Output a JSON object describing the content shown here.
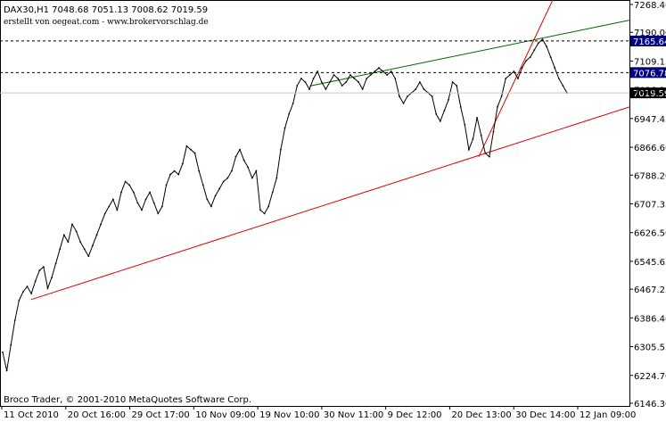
{
  "header": {
    "symbol_line": "DAX30,H1  7048.68 7051.13 7008.62 7019.59",
    "source_line": "erstellt von oegeat.com - www.brokervorschlag.de"
  },
  "footer": {
    "copyright": "Broco Trader, © 2001-2010 MetaQuotes Software Corp."
  },
  "colors": {
    "background": "#ffffff",
    "price_line": "#000000",
    "support_line": "#e00000",
    "resistance_line": "#006400",
    "label_highlight_bg": "#00007f",
    "label_highlight_text": "#ffffff",
    "label_current_bg": "#000000",
    "label_current_text": "#ffffff"
  },
  "chart_data": {
    "type": "line",
    "title": "DAX30,H1",
    "ylim": [
      6146.3,
      7268.4
    ],
    "y_ticks": [
      "7268.40",
      "7190.00",
      "7109.15",
      "7028.30",
      "6947.45",
      "6866.60",
      "6788.20",
      "6707.35",
      "6626.50",
      "6545.65",
      "6467.25",
      "6386.40",
      "6305.55",
      "6224.70",
      "6146.30"
    ],
    "x_ticks": [
      "11 Oct 2010",
      "20 Oct 16:00",
      "29 Oct 17:00",
      "10 Nov 09:00",
      "19 Nov 10:00",
      "30 Nov 11:00",
      "9 Dec 12:00",
      "20 Dec 13:00",
      "30 Dec 14:00",
      "12 Jan 09:00"
    ],
    "series": [
      {
        "values": [
          6290,
          6238,
          6310,
          6380,
          6435,
          6460,
          6475,
          6455,
          6490,
          6520,
          6530,
          6470,
          6500,
          6540,
          6580,
          6620,
          6600,
          6650,
          6630,
          6600,
          6580,
          6560,
          6590,
          6620,
          6650,
          6680,
          6700,
          6720,
          6690,
          6740,
          6770,
          6760,
          6740,
          6710,
          6690,
          6720,
          6740,
          6710,
          6680,
          6700,
          6760,
          6790,
          6800,
          6790,
          6820,
          6870,
          6860,
          6850,
          6800,
          6760,
          6720,
          6700,
          6730,
          6750,
          6770,
          6780,
          6800,
          6840,
          6860,
          6830,
          6810,
          6780,
          6800,
          6690,
          6680,
          6700,
          6740,
          6780,
          6860,
          6920,
          6960,
          6990,
          7040,
          7060,
          7050,
          7030,
          7060,
          7080,
          7050,
          7030,
          7050,
          7070,
          7060,
          7040,
          7050,
          7070,
          7060,
          7050,
          7030,
          7060,
          7070,
          7080,
          7090,
          7080,
          7070,
          7080,
          7060,
          7010,
          6990,
          7010,
          7020,
          7030,
          7050,
          7030,
          7020,
          7010,
          6960,
          6940,
          6970,
          7000,
          7050,
          7040,
          6980,
          6930,
          6860,
          6890,
          6950,
          6900,
          6850,
          6840,
          6910,
          6980,
          7010,
          7060,
          7070,
          7080,
          7060,
          7090,
          7110,
          7120,
          7140,
          7160,
          7170,
          7150,
          7120,
          7090,
          7060,
          7040,
          7019.59
        ]
      }
    ],
    "trendlines": [
      {
        "name": "support",
        "x": [
          0.0493,
          0.9473
        ],
        "y": [
          6438,
          6950
        ]
      },
      {
        "name": "resistance",
        "x": [
          0.4924,
          0.9473
        ],
        "y": [
          7039,
          7205
        ]
      },
      {
        "name": "steep-support",
        "x": [
          0.7606,
          0.8747
        ],
        "y": [
          6840,
          7268.4
        ]
      }
    ],
    "price_labels": [
      {
        "value": 7165.64,
        "label": "7165.64",
        "style": "highlight"
      },
      {
        "value": 7076.78,
        "label": "7076.78",
        "style": "highlight"
      },
      {
        "value": 7019.59,
        "label": "7019.59",
        "style": "current"
      }
    ],
    "grid": false
  }
}
